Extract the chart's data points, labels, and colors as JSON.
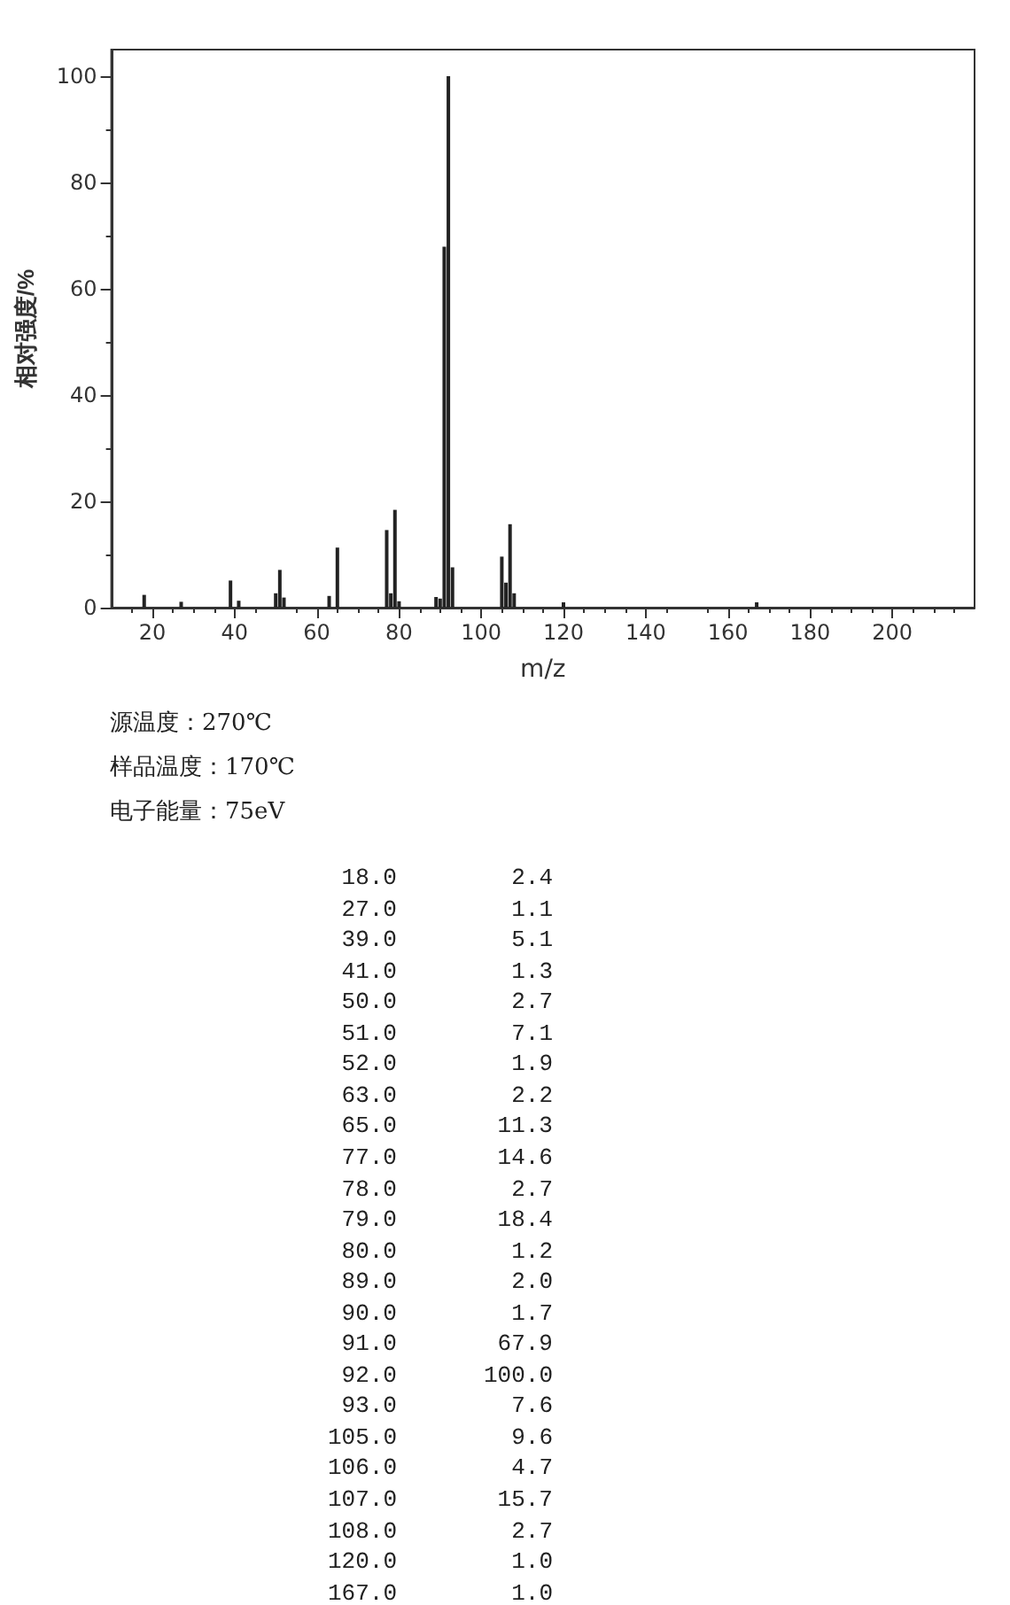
{
  "chart_data": [
    {
      "type": "bar",
      "xlabel": "m/z",
      "ylabel": "相对强度/%",
      "x": [
        18,
        27,
        39,
        41,
        50,
        51,
        52,
        63,
        65,
        77,
        78,
        79,
        80,
        89,
        90,
        91,
        92,
        93,
        105,
        106,
        107,
        108,
        120,
        167
      ],
      "values": [
        2.4,
        1.1,
        5.1,
        1.3,
        2.7,
        7.1,
        1.9,
        2.2,
        11.3,
        14.6,
        2.7,
        18.4,
        1.2,
        2.0,
        1.7,
        67.9,
        100.0,
        7.6,
        9.6,
        4.7,
        15.7,
        2.7,
        1.0,
        1.0
      ],
      "color": "#222222",
      "xlim": [
        10,
        220
      ],
      "xticks": [
        20,
        40,
        60,
        80,
        100,
        120,
        140,
        160,
        180,
        200
      ],
      "ylim": [
        0,
        105
      ],
      "yticks": [
        0,
        20,
        40,
        60,
        80,
        100
      ],
      "grid": false,
      "annotations": [
        "源温度：270℃",
        "样品温度：170℃",
        "电子能量：75eV"
      ]
    },
    {
      "type": "other",
      "annotations": [
        "18.0",
        "2.4",
        "27.0",
        "1.1",
        "39.0",
        "5.1",
        "41.0",
        "1.3",
        "50.0",
        "2.7",
        "51.0",
        "7.1",
        "52.0",
        "1.9",
        "63.0",
        "2.2",
        "65.0",
        "11.3",
        "77.0",
        "14.6",
        "78.0",
        "2.7",
        "79.0",
        "18.4",
        "80.0",
        "1.2",
        "89.0",
        "2.0",
        "90.0",
        "1.7",
        "91.0",
        "67.9",
        "92.0",
        "100.0",
        "93.0",
        "7.6",
        "105.0",
        "9.6",
        "106.0",
        "4.7",
        "107.0",
        "15.7",
        "108.0",
        "2.7",
        "120.0",
        "1.0",
        "167.0",
        "1.0"
      ]
    }
  ]
}
